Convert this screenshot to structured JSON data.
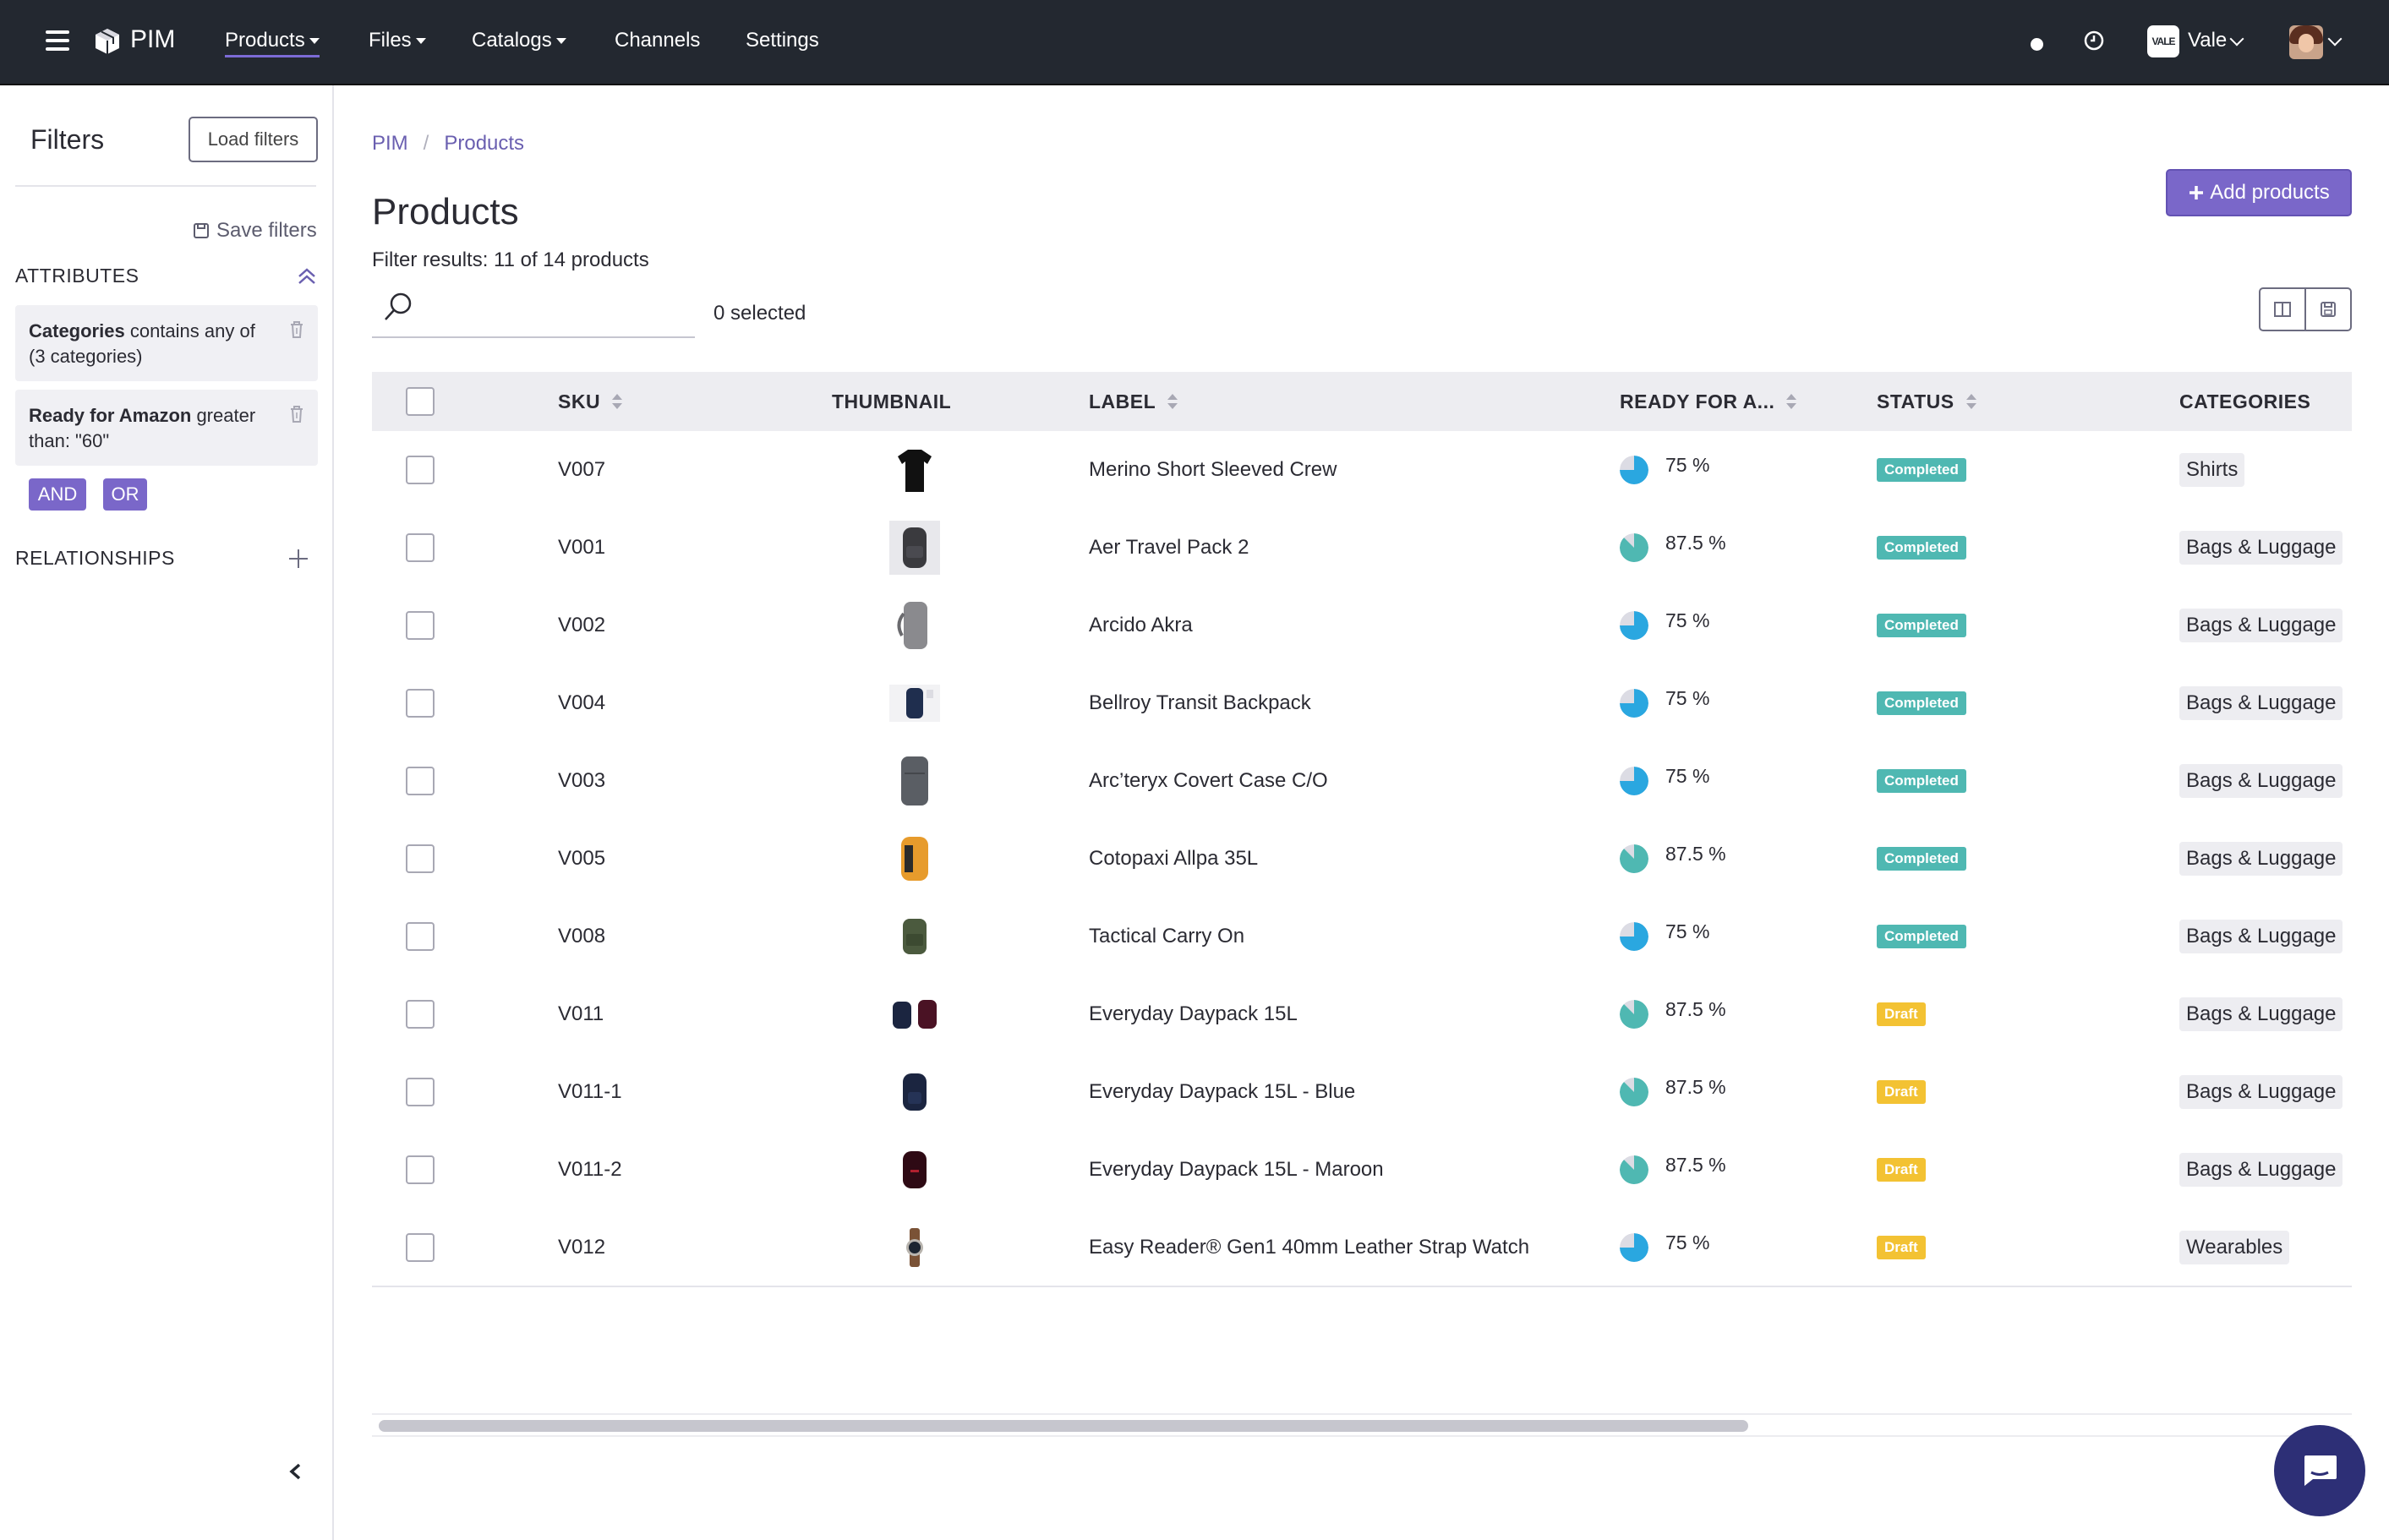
{
  "topbar": {
    "app_name": "PIM",
    "nav": [
      {
        "label": "Products",
        "has_caret": true,
        "active": true
      },
      {
        "label": "Files",
        "has_caret": true
      },
      {
        "label": "Catalogs",
        "has_caret": true
      },
      {
        "label": "Channels",
        "has_caret": false
      },
      {
        "label": "Settings",
        "has_caret": false
      }
    ],
    "org_badge": "VALE",
    "org_name": "Vale"
  },
  "sidebar": {
    "title": "Filters",
    "load_filters": "Load filters",
    "save_filters": "Save filters",
    "attributes_heading": "ATTRIBUTES",
    "filters": [
      {
        "field": "Categories",
        "rest": " contains any of (3 categories)"
      },
      {
        "field": "Ready for Amazon",
        "rest": " greater than: \"60\""
      }
    ],
    "logic": {
      "and": "AND",
      "or": "OR"
    },
    "relationships_heading": "RELATIONSHIPS"
  },
  "main": {
    "breadcrumb": [
      "PIM",
      "Products"
    ],
    "title": "Products",
    "filter_results": "Filter results: 11 of 14 products",
    "add_button": "Add products",
    "search_placeholder": "",
    "selected_count": "0 selected"
  },
  "table": {
    "columns": {
      "sku": "SKU",
      "thumbnail": "THUMBNAIL",
      "label": "LABEL",
      "ready": "READY FOR A...",
      "status": "STATUS",
      "categories": "CATEGORIES"
    },
    "rows": [
      {
        "sku": "V007",
        "label": "Merino Short Sleeved Crew",
        "ready": "75 %",
        "ready_value": 75,
        "status": "Completed",
        "category": "Shirts",
        "thumb": "tshirt"
      },
      {
        "sku": "V001",
        "label": "Aer Travel Pack 2",
        "ready": "87.5 %",
        "ready_value": 87.5,
        "status": "Completed",
        "category": "Bags & Luggage",
        "thumb": "backpack-dark"
      },
      {
        "sku": "V002",
        "label": "Arcido Akra",
        "ready": "75 %",
        "ready_value": 75,
        "status": "Completed",
        "category": "Bags & Luggage",
        "thumb": "backpack-grey"
      },
      {
        "sku": "V004",
        "label": "Bellroy Transit Backpack",
        "ready": "75 %",
        "ready_value": 75,
        "status": "Completed",
        "category": "Bags & Luggage",
        "thumb": "backpack-navy"
      },
      {
        "sku": "V003",
        "label": "Arc’teryx Covert Case C/O",
        "ready": "75 %",
        "ready_value": 75,
        "status": "Completed",
        "category": "Bags & Luggage",
        "thumb": "case-grey"
      },
      {
        "sku": "V005",
        "label": "Cotopaxi Allpa 35L",
        "ready": "87.5 %",
        "ready_value": 87.5,
        "status": "Completed",
        "category": "Bags & Luggage",
        "thumb": "backpack-orange"
      },
      {
        "sku": "V008",
        "label": "Tactical Carry On",
        "ready": "75 %",
        "ready_value": 75,
        "status": "Completed",
        "category": "Bags & Luggage",
        "thumb": "backpack-green"
      },
      {
        "sku": "V011",
        "label": "Everyday Daypack 15L",
        "ready": "87.5 %",
        "ready_value": 87.5,
        "status": "Draft",
        "category": "Bags & Luggage",
        "thumb": "daypack-pair"
      },
      {
        "sku": "V011-1",
        "label": "Everyday Daypack 15L - Blue",
        "ready": "87.5 %",
        "ready_value": 87.5,
        "status": "Draft",
        "category": "Bags & Luggage",
        "thumb": "daypack-blue"
      },
      {
        "sku": "V011-2",
        "label": "Everyday Daypack 15L - Maroon",
        "ready": "87.5 %",
        "ready_value": 87.5,
        "status": "Draft",
        "category": "Bags & Luggage",
        "thumb": "daypack-maroon"
      },
      {
        "sku": "V012",
        "label": "Easy Reader® Gen1 40mm Leather Strap Watch",
        "ready": "75 %",
        "ready_value": 75,
        "status": "Draft",
        "category": "Wearables",
        "thumb": "watch"
      }
    ]
  },
  "colors": {
    "topbar_bg": "#232830",
    "accent": "#7a67c9",
    "status_completed": "#4fb8b2",
    "status_draft": "#f3c233",
    "ready_75": "#2aa7e0",
    "ready_87": "#4fb8b2",
    "chat": "#2d2f76"
  }
}
